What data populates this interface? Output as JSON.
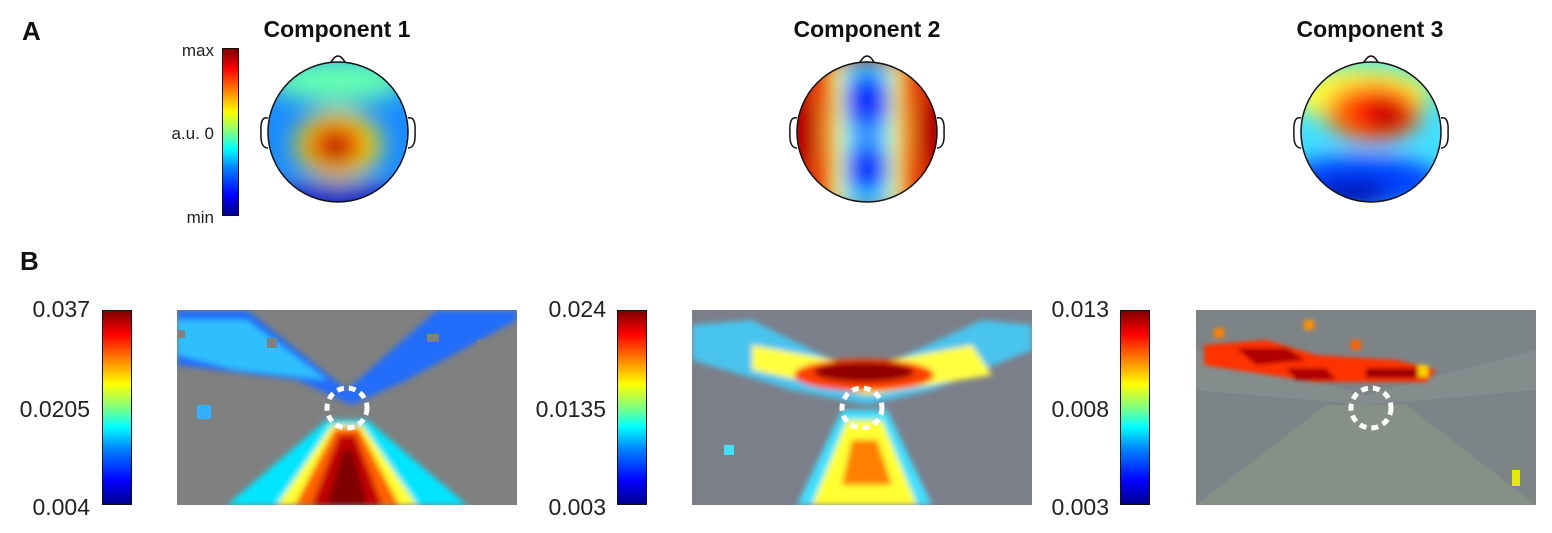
{
  "panels": {
    "a_label": "A",
    "b_label": "B"
  },
  "components": [
    {
      "title": "Component 1"
    },
    {
      "title": "Component 2"
    },
    {
      "title": "Component 3"
    }
  ],
  "topo_colorbar": {
    "max_label": "max",
    "mid_label": "a.u. 0",
    "min_label": "min"
  },
  "maps": [
    {
      "cbar_max": "0.037",
      "cbar_mid": "0.0205",
      "cbar_min": "0.004"
    },
    {
      "cbar_max": "0.024",
      "cbar_mid": "0.0135",
      "cbar_min": "0.003"
    },
    {
      "cbar_max": "0.013",
      "cbar_mid": "0.008",
      "cbar_min": "0.003"
    }
  ],
  "colors": {
    "background_gray": "#808080",
    "dark_red": "#800000",
    "blue": "#0000ff"
  }
}
